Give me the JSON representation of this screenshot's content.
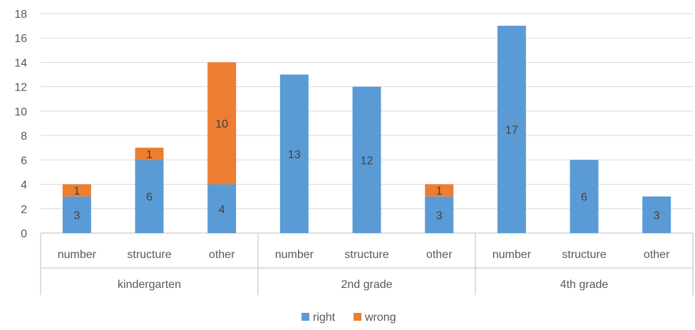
{
  "chart_data": {
    "type": "bar",
    "stacked": true,
    "groups": [
      "kindergarten",
      "2nd grade",
      "4th grade"
    ],
    "categories": [
      "number",
      "structure",
      "other"
    ],
    "series": [
      {
        "name": "right",
        "color": "#5B9BD5",
        "values": [
          [
            3,
            6,
            4
          ],
          [
            13,
            12,
            3
          ],
          [
            17,
            6,
            3
          ]
        ]
      },
      {
        "name": "wrong",
        "color": "#ED7D31",
        "values": [
          [
            1,
            1,
            10
          ],
          [
            0,
            0,
            1
          ],
          [
            0,
            0,
            0
          ]
        ]
      }
    ],
    "ylim": [
      0,
      18
    ],
    "yticks": [
      0,
      2,
      4,
      6,
      8,
      10,
      12,
      14,
      16,
      18
    ],
    "grid": true,
    "legend": "bottom"
  }
}
